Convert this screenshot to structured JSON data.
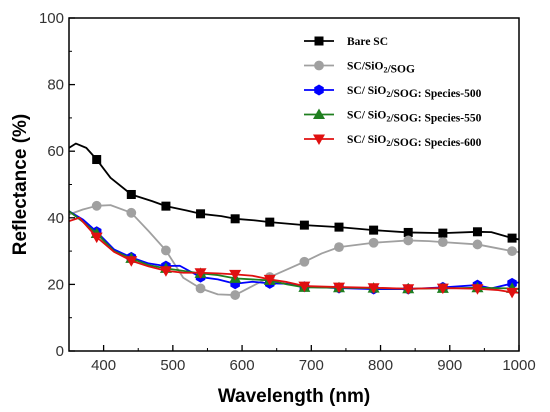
{
  "chart_data": {
    "type": "line",
    "title": "",
    "xlabel": "Wavelength (nm)",
    "ylabel": "Reflectance (%)",
    "xlim": [
      350,
      1000
    ],
    "ylim": [
      0,
      100
    ],
    "x_ticks": [
      400,
      500,
      600,
      700,
      800,
      900,
      1000
    ],
    "y_ticks": [
      0,
      20,
      40,
      60,
      80,
      100
    ],
    "grid": false,
    "legend_position": "top-right",
    "series": [
      {
        "name": "Bare SC",
        "legend_parts": [
          {
            "t": "Bare SC"
          }
        ],
        "color": "#000000",
        "marker": "square",
        "markers_x": [
          390,
          440,
          490,
          540,
          590,
          640,
          690,
          740,
          790,
          840,
          890,
          940,
          990
        ],
        "points": [
          [
            350,
            61
          ],
          [
            360,
            62.3
          ],
          [
            375,
            61
          ],
          [
            390,
            57.5
          ],
          [
            410,
            52
          ],
          [
            440,
            47
          ],
          [
            470,
            45
          ],
          [
            490,
            43.5
          ],
          [
            520,
            42.2
          ],
          [
            540,
            41.2
          ],
          [
            570,
            40.5
          ],
          [
            590,
            39.7
          ],
          [
            620,
            39.2
          ],
          [
            640,
            38.7
          ],
          [
            690,
            37.8
          ],
          [
            740,
            37.2
          ],
          [
            790,
            36.3
          ],
          [
            840,
            35.6
          ],
          [
            890,
            35.4
          ],
          [
            940,
            35.8
          ],
          [
            960,
            35.7
          ],
          [
            990,
            33.9
          ],
          [
            1000,
            33.5
          ]
        ]
      },
      {
        "name": "SC/SiO2/SOG",
        "legend_parts": [
          {
            "t": "SC/SiO"
          },
          {
            "t": "2",
            "sub": true
          },
          {
            "t": "/SOG"
          }
        ],
        "color": "#a0a0a0",
        "marker": "circle",
        "markers_x": [
          390,
          440,
          490,
          540,
          590,
          640,
          690,
          740,
          790,
          840,
          890,
          940,
          990
        ],
        "points": [
          [
            350,
            41
          ],
          [
            370,
            42.5
          ],
          [
            390,
            43.6
          ],
          [
            410,
            43.8
          ],
          [
            440,
            41.5
          ],
          [
            465,
            36
          ],
          [
            490,
            30.2
          ],
          [
            515,
            22
          ],
          [
            540,
            18.8
          ],
          [
            565,
            17
          ],
          [
            590,
            16.8
          ],
          [
            615,
            19.5
          ],
          [
            640,
            22.2
          ],
          [
            665,
            24.5
          ],
          [
            690,
            26.8
          ],
          [
            715,
            29.3
          ],
          [
            740,
            31.2
          ],
          [
            790,
            32.5
          ],
          [
            840,
            33.2
          ],
          [
            870,
            33
          ],
          [
            890,
            32.7
          ],
          [
            940,
            32
          ],
          [
            970,
            30.8
          ],
          [
            990,
            30
          ],
          [
            1000,
            29.7
          ]
        ]
      },
      {
        "name": "SC/ SiO2/SOG: Species-500",
        "legend_parts": [
          {
            "t": "SC/ SiO"
          },
          {
            "t": "2",
            "sub": true
          },
          {
            "t": "/SOG: Species-500"
          }
        ],
        "color": "#0000ff",
        "marker": "hexagon",
        "markers_x": [
          390,
          440,
          490,
          540,
          590,
          640,
          690,
          740,
          790,
          840,
          890,
          940,
          990
        ],
        "points": [
          [
            350,
            42
          ],
          [
            370,
            39.5
          ],
          [
            390,
            35.8
          ],
          [
            415,
            30.5
          ],
          [
            440,
            28.1
          ],
          [
            465,
            26.3
          ],
          [
            490,
            25.5
          ],
          [
            510,
            25.6
          ],
          [
            540,
            22.2
          ],
          [
            565,
            21.5
          ],
          [
            590,
            20.2
          ],
          [
            615,
            20.8
          ],
          [
            640,
            20.3
          ],
          [
            665,
            20.2
          ],
          [
            690,
            19.3
          ],
          [
            740,
            18.9
          ],
          [
            790,
            18.6
          ],
          [
            840,
            18.6
          ],
          [
            890,
            19.1
          ],
          [
            940,
            19.8
          ],
          [
            960,
            18.8
          ],
          [
            990,
            20.3
          ],
          [
            1000,
            20.6
          ]
        ]
      },
      {
        "name": "SC/ SiO2/SOG: Species-550",
        "legend_parts": [
          {
            "t": "SC/ SiO"
          },
          {
            "t": "2",
            "sub": true
          },
          {
            "t": "/SOG: Species-550"
          }
        ],
        "color": "#1f7f1f",
        "marker": "triangle-up",
        "markers_x": [
          390,
          440,
          490,
          540,
          590,
          640,
          690,
          740,
          790,
          840,
          890,
          940,
          990
        ],
        "points": [
          [
            350,
            42
          ],
          [
            370,
            38.8
          ],
          [
            390,
            35.3
          ],
          [
            415,
            30
          ],
          [
            440,
            27.8
          ],
          [
            465,
            25.8
          ],
          [
            490,
            24.8
          ],
          [
            540,
            23.3
          ],
          [
            565,
            22.8
          ],
          [
            590,
            21.8
          ],
          [
            640,
            21.2
          ],
          [
            665,
            20
          ],
          [
            690,
            19.1
          ],
          [
            740,
            19
          ],
          [
            790,
            18.9
          ],
          [
            840,
            18.7
          ],
          [
            890,
            18.8
          ],
          [
            940,
            19
          ],
          [
            990,
            18.8
          ],
          [
            1000,
            18.6
          ]
        ]
      },
      {
        "name": "SC/ SiO2/SOG: Species-600",
        "legend_parts": [
          {
            "t": "SC/ SiO"
          },
          {
            "t": "2",
            "sub": true
          },
          {
            "t": "/SOG: Species-600"
          }
        ],
        "color": "#e01010",
        "marker": "triangle-down",
        "markers_x": [
          390,
          440,
          490,
          540,
          590,
          640,
          690,
          740,
          790,
          840,
          890,
          940,
          990
        ],
        "points": [
          [
            350,
            39
          ],
          [
            365,
            40
          ],
          [
            390,
            34.2
          ],
          [
            415,
            29.8
          ],
          [
            440,
            27.1
          ],
          [
            465,
            25.4
          ],
          [
            490,
            24.1
          ],
          [
            515,
            23.5
          ],
          [
            540,
            23.5
          ],
          [
            565,
            23.3
          ],
          [
            590,
            23
          ],
          [
            615,
            22.6
          ],
          [
            640,
            21.5
          ],
          [
            665,
            20.7
          ],
          [
            690,
            19.5
          ],
          [
            740,
            19.2
          ],
          [
            790,
            19
          ],
          [
            840,
            18.7
          ],
          [
            890,
            18.9
          ],
          [
            940,
            18.7
          ],
          [
            970,
            18.3
          ],
          [
            990,
            17.6
          ],
          [
            1000,
            17.5
          ]
        ]
      }
    ]
  }
}
